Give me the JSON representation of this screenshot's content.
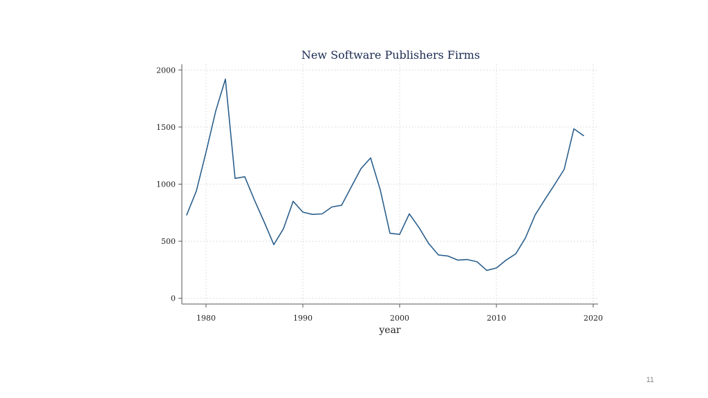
{
  "slide": {
    "page_number": "11"
  },
  "chart_data": {
    "type": "line",
    "title": "New Software Publishers Firms",
    "xlabel": "year",
    "ylabel": "",
    "xlim": [
      1977.5,
      2020.5
    ],
    "ylim": [
      -50,
      2050
    ],
    "x_ticks": [
      1980,
      1990,
      2000,
      2010,
      2020
    ],
    "y_ticks": [
      0,
      500,
      1000,
      1500,
      2000
    ],
    "grid": true,
    "line_color": "#2b5f8c",
    "series": [
      {
        "x": [
          1978,
          1979,
          1980,
          1981,
          1982,
          1983,
          1984,
          1985,
          1986,
          1987,
          1988,
          1989,
          1990,
          1991,
          1992,
          1993,
          1994,
          1995,
          1996,
          1997,
          1998,
          1999,
          2000,
          2001,
          2002,
          2003,
          2004,
          2005,
          2006,
          2007,
          2008,
          2009,
          2010,
          2011,
          2012,
          2013,
          2014,
          2015,
          2016,
          2017,
          2018,
          2019
        ],
        "values": [
          730,
          940,
          1280,
          1640,
          1920,
          1050,
          1065,
          860,
          670,
          470,
          610,
          850,
          755,
          735,
          740,
          800,
          815,
          975,
          1135,
          1230,
          950,
          570,
          560,
          740,
          620,
          480,
          380,
          370,
          335,
          340,
          320,
          245,
          265,
          335,
          390,
          530,
          730,
          865,
          995,
          1130,
          1485,
          1425
        ]
      }
    ]
  }
}
